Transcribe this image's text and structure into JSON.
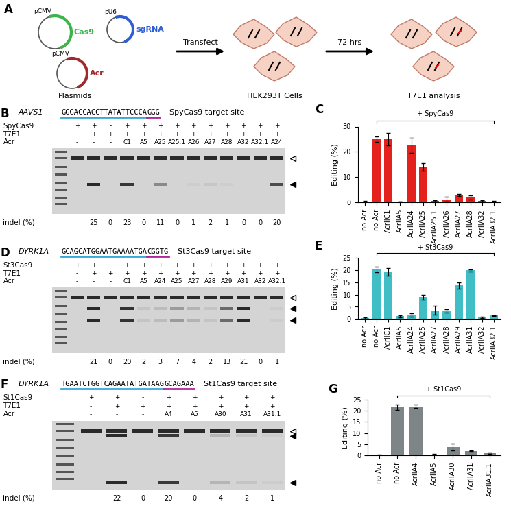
{
  "diagram": {
    "panel": "A",
    "plasmids": [
      {
        "promoter": "pCMV",
        "name": "Cas9",
        "color": "#3cb44b"
      },
      {
        "promoter": "pU6",
        "name": "sgRNA",
        "color": "#2e5dd6"
      },
      {
        "promoter": "pCMV",
        "name": "Acr",
        "color": "#a0282d"
      }
    ],
    "plasmids_label": "Plasmids",
    "step1": "Transfect",
    "cells_label": "HEK293T Cells",
    "step2": "72 hrs",
    "result_label": "T7E1 analysis"
  },
  "gels": [
    {
      "panel": "B",
      "gene": "AAVS1",
      "protospacer": "GGGACCACCTTATATTCCCA",
      "pam": "GGG",
      "site_label": "SpyCas9 target site",
      "row_labels": [
        "SpyCas9",
        "T7E1",
        "Acr"
      ],
      "indel_label": "indel (%)",
      "cas9": [
        "+",
        "+",
        "-",
        "+",
        "+",
        "+",
        "+",
        "+",
        "+",
        "+",
        "+",
        "+",
        "+"
      ],
      "t7e1": [
        "-",
        "+",
        "+",
        "+",
        "+",
        "+",
        "+",
        "+",
        "+",
        "+",
        "+",
        "+",
        "+"
      ],
      "acr": [
        "-",
        "-",
        "-",
        "C1",
        "A5",
        "A25",
        "A25.1",
        "A26",
        "A27",
        "A28",
        "A32",
        "A32.1",
        "A24"
      ],
      "indel": [
        null,
        25,
        0,
        23,
        0,
        11,
        0,
        1,
        2,
        1,
        0,
        0,
        20
      ]
    },
    {
      "panel": "D",
      "gene": "DYRK1A",
      "protospacer": "GCAGCATGGAATGAAAATGA",
      "pam": "CGGTG",
      "site_label": "St3Cas9 target site",
      "row_labels": [
        "St3Cas9",
        "T7E1",
        "Acr"
      ],
      "indel_label": "indel (%)",
      "cas9": [
        "+",
        "+",
        "-",
        "+",
        "+",
        "+",
        "+",
        "+",
        "+",
        "+",
        "+",
        "+",
        "+"
      ],
      "t7e1": [
        "-",
        "+",
        "+",
        "+",
        "+",
        "+",
        "+",
        "+",
        "+",
        "+",
        "+",
        "+",
        "+"
      ],
      "acr": [
        "-",
        "-",
        "-",
        "C1",
        "A5",
        "A24",
        "A25",
        "A27",
        "A28",
        "A29",
        "A31",
        "A32",
        "A32.1"
      ],
      "indel": [
        null,
        21,
        0,
        20,
        2,
        3,
        7,
        4,
        2,
        13,
        21,
        0,
        1
      ]
    },
    {
      "panel": "F",
      "gene": "DYRK1A",
      "protospacer": "TGAATCTGGTCAGAATATGATAAG",
      "pam": "GCAGAAA",
      "site_label": "St1Cas9 target site",
      "row_labels": [
        "St1Cas9",
        "T7E1",
        "Acr"
      ],
      "indel_label": "indel (%)",
      "cas9": [
        "+",
        "+",
        "-",
        "+",
        "+",
        "+",
        "+",
        "+"
      ],
      "t7e1": [
        "-",
        "+",
        "+",
        "+",
        "+",
        "+",
        "+",
        "+"
      ],
      "acr": [
        "-",
        "-",
        "-",
        "A4",
        "A5",
        "A30",
        "A31",
        "A31.1"
      ],
      "indel": [
        null,
        22,
        0,
        20,
        0,
        4,
        2,
        1
      ]
    }
  ],
  "chart_data": [
    {
      "type": "bar",
      "panel": "C",
      "bracket_label": "+ SpyCas9",
      "y_label": "Editing (%)",
      "color": "#e4211c",
      "categories": [
        "no Acr",
        "no Acr",
        "AcrIIC1",
        "AcrIIA5",
        "AcrIIA24",
        "AcrIIA25",
        "AcrIIA25.1",
        "AcrIIA26",
        "AcrIIA27",
        "AcrIIA28",
        "AcrIIA32",
        "AcrIIA32.1"
      ],
      "values": [
        0.3,
        25,
        25,
        0.3,
        22.5,
        14,
        0.5,
        1.2,
        2.8,
        2,
        0.5,
        0.3
      ],
      "errors": [
        0.2,
        1.2,
        2.5,
        0.1,
        3,
        1.5,
        0.3,
        1,
        0.4,
        0.8,
        0.3,
        0.2
      ],
      "ylim": [
        0,
        30
      ],
      "yticks": [
        0,
        10,
        20,
        30
      ]
    },
    {
      "type": "bar",
      "panel": "E",
      "bracket_label": "+ St3Cas9",
      "y_label": "Editing (%)",
      "color": "#3fbfc5",
      "categories": [
        "no Acr",
        "no Acr",
        "AcrIIC1",
        "AcrIIA5",
        "AcrIIA24",
        "AcrIIA25",
        "AcrIIA27",
        "AcrIIA28",
        "AcrIIA29",
        "AcrIIA31",
        "AcrIIA32",
        "AcrIIA32.1"
      ],
      "values": [
        0.3,
        20.3,
        19.3,
        1,
        1.5,
        9,
        3.5,
        3.2,
        13.7,
        20,
        0.5,
        1.3
      ],
      "errors": [
        0.2,
        1,
        1.5,
        0.4,
        0.8,
        1,
        1.8,
        0.8,
        1.2,
        0.4,
        0.2,
        0.2
      ],
      "ylim": [
        0,
        25
      ],
      "yticks": [
        0,
        5,
        10,
        15,
        20,
        25
      ]
    },
    {
      "type": "bar",
      "panel": "G",
      "bracket_label": "+ St1Cas9",
      "y_label": "Editing (%)",
      "color": "#7d8587",
      "categories": [
        "no Acr",
        "no Acr",
        "AcrIIA4",
        "AcrIIA5",
        "AcrIIA30",
        "AcrIIA31",
        "AcrIIA31.1"
      ],
      "values": [
        0.3,
        21.7,
        22,
        0.5,
        3.7,
        2,
        1
      ],
      "errors": [
        0.2,
        1.2,
        0.8,
        0.3,
        1.5,
        0.2,
        0.4
      ],
      "ylim": [
        0,
        25
      ],
      "yticks": [
        0,
        5,
        10,
        15,
        20,
        25
      ]
    }
  ]
}
